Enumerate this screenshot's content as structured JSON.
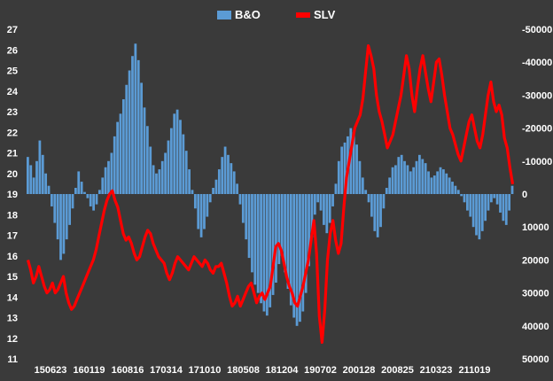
{
  "chart_data": {
    "type": "bar+line",
    "title": "",
    "legend": {
      "position": "top",
      "entries": [
        {
          "name": "B&O",
          "color": "#5b9bd5",
          "kind": "bar"
        },
        {
          "name": "SLV",
          "color": "#ff0000",
          "kind": "line"
        }
      ]
    },
    "x_ticks": [
      "150623",
      "160119",
      "160816",
      "170314",
      "171010",
      "180508",
      "181204",
      "190702",
      "200128",
      "200825",
      "210323",
      "211019"
    ],
    "y_left": {
      "min": 11,
      "max": 27,
      "baseline": 19,
      "ticks": [
        11,
        12,
        13,
        14,
        15,
        16,
        17,
        18,
        19,
        20,
        21,
        22,
        23,
        24,
        25,
        26,
        27
      ]
    },
    "y_right": {
      "min": -50000,
      "max": 50000,
      "inverted": true,
      "ticks": [
        -50000,
        -40000,
        -30000,
        -20000,
        -10000,
        0,
        10000,
        20000,
        30000,
        40000,
        50000
      ]
    },
    "grid": false,
    "series": [
      {
        "name": "B&O",
        "axis": "left",
        "color": "#5b9bd5",
        "values": [
          20.8,
          20.4,
          19.8,
          20.6,
          21.6,
          20.9,
          20.0,
          19.4,
          18.4,
          17.6,
          16.8,
          15.8,
          16.1,
          16.8,
          17.5,
          18.3,
          19.3,
          20.1,
          19.6,
          19.1,
          18.8,
          18.4,
          18.2,
          18.5,
          19.2,
          19.8,
          20.3,
          20.6,
          21.0,
          21.8,
          22.5,
          22.9,
          23.6,
          24.3,
          25.0,
          25.7,
          26.3,
          25.5,
          24.4,
          23.2,
          22.3,
          21.3,
          20.4,
          20.0,
          20.2,
          20.6,
          21.0,
          21.6,
          22.2,
          22.9,
          23.1,
          22.6,
          21.9,
          21.1,
          20.2,
          19.2,
          18.3,
          17.3,
          16.9,
          17.3,
          17.9,
          18.6,
          19.3,
          19.7,
          20.2,
          20.8,
          21.3,
          20.9,
          20.5,
          20.1,
          19.5,
          18.5,
          17.6,
          16.8,
          15.9,
          15.2,
          14.6,
          14.2,
          13.7,
          13.3,
          13.1,
          13.5,
          14.1,
          14.7,
          15.6,
          16.0,
          15.2,
          14.4,
          13.6,
          13.0,
          12.6,
          12.8,
          13.3,
          14.2,
          15.5,
          16.9,
          18.0,
          18.6,
          18.2,
          17.5,
          17.1,
          17.6,
          18.4,
          19.5,
          20.6,
          21.3,
          21.5,
          21.8,
          22.2,
          22.0,
          21.4,
          20.6,
          19.8,
          19.2,
          18.6,
          17.9,
          17.2,
          16.9,
          17.4,
          18.3,
          19.3,
          19.8,
          20.3,
          20.4,
          20.8,
          20.9,
          20.6,
          20.4,
          20.1,
          20.3,
          20.6,
          20.9,
          20.7,
          20.5,
          20.1,
          19.8,
          19.9,
          20.1,
          20.3,
          20.2,
          20.0,
          19.8,
          19.6,
          19.4,
          19.2,
          18.9,
          18.6,
          18.2,
          17.9,
          17.4,
          17.0,
          16.8,
          17.2,
          17.7,
          18.2,
          18.6,
          18.8,
          18.5,
          18.1,
          17.7,
          17.5,
          18.2,
          19.4
        ],
        "bar_color": "#5b9bd5"
      },
      {
        "name": "SLV",
        "axis": "right",
        "color": "#ff0000",
        "values": [
          20000,
          23000,
          27000,
          25000,
          22000,
          25000,
          28000,
          30000,
          29000,
          27000,
          30000,
          29000,
          27000,
          25000,
          30000,
          33000,
          35000,
          34000,
          32000,
          30000,
          28000,
          26000,
          24000,
          22000,
          20000,
          17000,
          13000,
          9000,
          5000,
          2000,
          0,
          -1000,
          2000,
          4000,
          8000,
          12000,
          14000,
          13000,
          15000,
          18000,
          20000,
          19000,
          16000,
          13000,
          11000,
          12000,
          15000,
          17000,
          19000,
          20000,
          21000,
          24000,
          26000,
          24000,
          21000,
          19000,
          20000,
          21000,
          22000,
          23000,
          21000,
          19000,
          20000,
          21000,
          22000,
          20000,
          21000,
          23000,
          24000,
          22000,
          22000,
          21000,
          24000,
          27000,
          31000,
          34000,
          33000,
          31000,
          34000,
          32000,
          30000,
          28000,
          27000,
          30000,
          33000,
          31000,
          30000,
          32000,
          30000,
          28000,
          22000,
          16000,
          15000,
          17000,
          21000,
          25000,
          28000,
          30000,
          33000,
          34000,
          31000,
          28000,
          24000,
          20000,
          14000,
          8000,
          18000,
          37000,
          45000,
          35000,
          20000,
          12000,
          8000,
          14000,
          18000,
          15000,
          4000,
          -5000,
          -10000,
          -15000,
          -20000,
          -22000,
          -24000,
          -29000,
          -37000,
          -45000,
          -42000,
          -38000,
          -30000,
          -25000,
          -22000,
          -18000,
          -14000,
          -16000,
          -18000,
          -22000,
          -26000,
          -30000,
          -36000,
          -42000,
          -38000,
          -30000,
          -25000,
          -32000,
          -38000,
          -42000,
          -37000,
          -32000,
          -28000,
          -34000,
          -40000,
          -41000,
          -36000,
          -30000,
          -25000,
          -20000,
          -18000,
          -15000,
          -12000,
          -10000,
          -14000,
          -18000,
          -22000,
          -24000,
          -20000,
          -16000,
          -14000,
          -18000,
          -24000,
          -30000,
          -34000,
          -28000,
          -25000,
          -27000,
          -24000,
          -17000,
          -14000,
          -8000,
          -3000
        ]
      }
    ]
  }
}
